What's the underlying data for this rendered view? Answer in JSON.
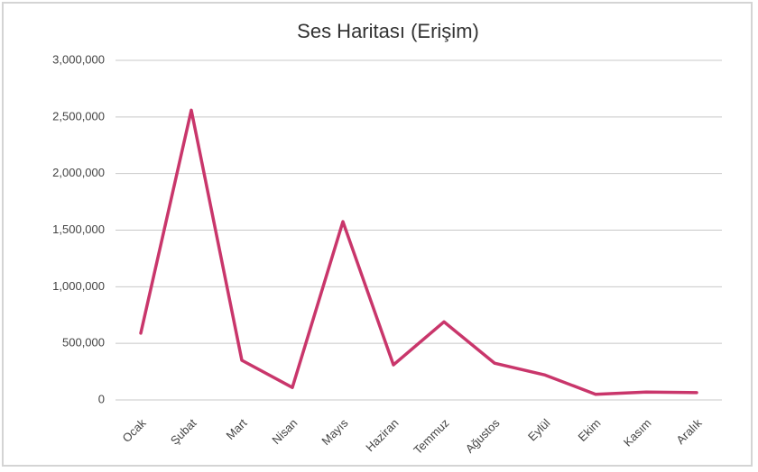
{
  "chart_data": {
    "type": "line",
    "title": "Ses Haritası (Erişim)",
    "categories": [
      "Ocak",
      "Şubat",
      "Mart",
      "Nisan",
      "Mayıs",
      "Haziran",
      "Temmuz",
      "Ağustos",
      "Eylül",
      "Ekim",
      "Kasım",
      "Aralık"
    ],
    "series": [
      {
        "name": "Erişim",
        "color": "#c9366b",
        "values": [
          590000,
          2560000,
          350000,
          110000,
          1575000,
          310000,
          690000,
          325000,
          220000,
          50000,
          70000,
          65000
        ]
      }
    ],
    "ylim": [
      0,
      3000000
    ],
    "yticks": [
      0,
      {
        "value": 500000,
        "label": "500,000"
      },
      {
        "value": 1000000,
        "label": "1,000,000"
      },
      {
        "value": 1500000,
        "label": "1,500,000"
      },
      {
        "value": 2000000,
        "label": "2,000,000"
      },
      {
        "value": 2500000,
        "label": "2,500,000"
      },
      {
        "value": 3000000,
        "label": "3,000,000"
      }
    ],
    "grid": true,
    "legend": false
  }
}
